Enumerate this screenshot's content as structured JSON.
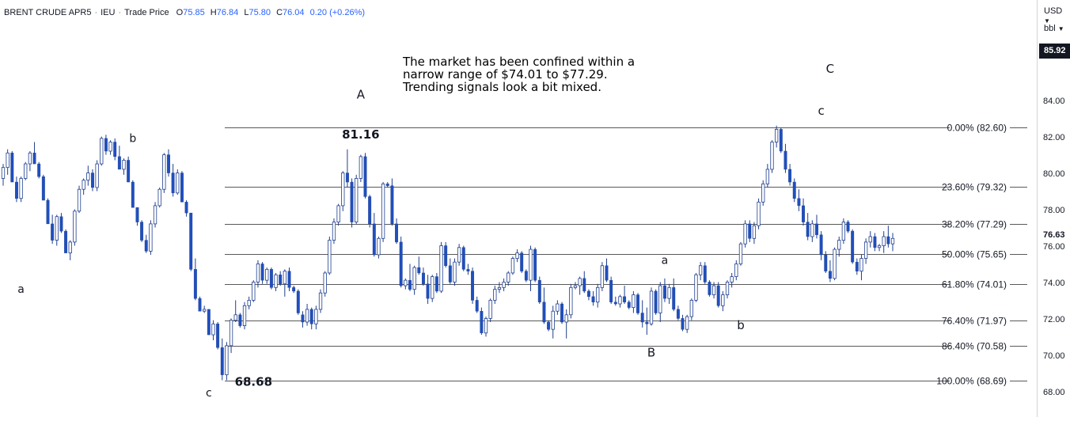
{
  "legend": {
    "symbol": "BRENT CRUDE APR5",
    "exchange": "IEU",
    "series_label": "Trade Price",
    "o_key": "O",
    "o_val": "75.85",
    "h_key": "H",
    "h_val": "76.84",
    "l_key": "L",
    "l_val": "75.80",
    "c_key": "C",
    "c_val": "76.04",
    "change": "0.20 (+0.26%)"
  },
  "price_axis": {
    "currency": "USD",
    "unit": "bbl",
    "top_tag": "85.92",
    "last_price": "76.63",
    "ticks": [
      "84.00",
      "82.00",
      "80.00",
      "78.00",
      "76.00",
      "74.00",
      "72.00",
      "70.00",
      "68.00"
    ]
  },
  "note": {
    "lines": [
      "The market has been confined within a",
      "narrow range of $74.01 to $77.29.",
      "Trending signals look a bit mixed."
    ]
  },
  "chart_data": {
    "type": "candlestick",
    "title": "BRENT CRUDE APR5",
    "ylabel": "USD / bbl",
    "ylim": [
      67.2,
      87.0
    ],
    "y_ticks": [
      68,
      70,
      72,
      74,
      76,
      78,
      80,
      82,
      84
    ],
    "last_price": 76.63,
    "colors": {
      "up": "#ffffff",
      "down": "#1f4fbf",
      "wick": "#1f3f8f",
      "fib": "#222222"
    },
    "fibonacci": [
      {
        "label": "0.00% (82.60)",
        "level": 82.6
      },
      {
        "label": "23.60% (79.32)",
        "level": 79.32
      },
      {
        "label": "38.20% (77.29)",
        "level": 77.29
      },
      {
        "label": "50.00% (75.65)",
        "level": 75.65
      },
      {
        "label": "61.80% (74.01)",
        "level": 74.01
      },
      {
        "label": "76.40% (71.97)",
        "level": 71.97
      },
      {
        "label": "86.40% (70.58)",
        "level": 70.58
      },
      {
        "label": "100.00% (68.69)",
        "level": 68.69
      }
    ],
    "wave_labels": [
      {
        "text": "a",
        "i": 4,
        "price": 73.5,
        "big": false
      },
      {
        "text": "b",
        "i": 29,
        "price": 81.8,
        "big": false
      },
      {
        "text": "c",
        "i": 46,
        "price": 67.8,
        "big": false
      },
      {
        "text": "A",
        "i": 80,
        "price": 84.2,
        "big": true
      },
      {
        "text": "a",
        "i": 148,
        "price": 75.1,
        "big": false
      },
      {
        "text": "B",
        "i": 145,
        "price": 70.0,
        "big": true
      },
      {
        "text": "b",
        "i": 165,
        "price": 71.5,
        "big": true
      },
      {
        "text": "C",
        "i": 185,
        "price": 85.6,
        "big": true
      },
      {
        "text": "c",
        "i": 183,
        "price": 83.3,
        "big": true
      }
    ],
    "price_labels": [
      {
        "text": "81.16",
        "i": 80,
        "price": 82.0
      },
      {
        "text": "68.68",
        "i": 56,
        "price": 68.4
      }
    ],
    "ohlc": [
      [
        79.8,
        80.6,
        79.4,
        80.4
      ],
      [
        80.4,
        81.4,
        80.0,
        81.2
      ],
      [
        81.2,
        81.3,
        79.6,
        79.6
      ],
      [
        79.6,
        79.9,
        78.5,
        78.7
      ],
      [
        78.7,
        79.9,
        78.5,
        79.8
      ],
      [
        79.8,
        80.7,
        79.7,
        80.6
      ],
      [
        80.6,
        81.3,
        80.2,
        81.2
      ],
      [
        81.2,
        81.8,
        80.6,
        80.6
      ],
      [
        80.6,
        80.7,
        79.8,
        79.9
      ],
      [
        79.9,
        80.0,
        78.6,
        78.6
      ],
      [
        78.6,
        78.7,
        77.3,
        77.3
      ],
      [
        77.3,
        77.8,
        76.2,
        76.4
      ],
      [
        76.4,
        77.8,
        76.1,
        77.7
      ],
      [
        77.7,
        77.9,
        76.8,
        76.9
      ],
      [
        76.9,
        77.0,
        75.7,
        75.7
      ],
      [
        75.7,
        76.4,
        75.3,
        76.3
      ],
      [
        76.3,
        78.1,
        76.1,
        78.0
      ],
      [
        78.0,
        79.4,
        77.9,
        79.2
      ],
      [
        79.2,
        79.8,
        78.9,
        79.7
      ],
      [
        79.7,
        80.5,
        79.4,
        80.1
      ],
      [
        80.1,
        80.3,
        79.1,
        79.3
      ],
      [
        79.3,
        80.8,
        79.1,
        80.6
      ],
      [
        80.6,
        82.1,
        80.5,
        82.0
      ],
      [
        82.0,
        82.2,
        81.1,
        81.3
      ],
      [
        81.3,
        81.9,
        81.1,
        81.8
      ],
      [
        81.8,
        82.0,
        80.8,
        81.0
      ],
      [
        81.0,
        81.6,
        80.3,
        80.3
      ],
      [
        80.3,
        80.9,
        80.0,
        80.8
      ],
      [
        80.8,
        81.0,
        79.6,
        79.6
      ],
      [
        79.6,
        79.7,
        78.2,
        78.2
      ],
      [
        78.2,
        78.2,
        77.2,
        77.4
      ],
      [
        77.4,
        77.5,
        76.3,
        76.4
      ],
      [
        76.4,
        76.7,
        75.7,
        75.8
      ],
      [
        75.8,
        77.5,
        75.6,
        77.3
      ],
      [
        77.3,
        78.5,
        77.1,
        78.3
      ],
      [
        78.3,
        79.3,
        78.2,
        79.2
      ],
      [
        79.2,
        81.2,
        79.0,
        81.1
      ],
      [
        81.1,
        81.4,
        79.9,
        80.1
      ],
      [
        80.1,
        80.6,
        78.8,
        79.0
      ],
      [
        79.0,
        80.3,
        78.9,
        80.1
      ],
      [
        80.1,
        80.2,
        78.5,
        78.5
      ],
      [
        78.5,
        78.6,
        77.7,
        77.9
      ],
      [
        77.9,
        77.9,
        74.7,
        74.8
      ],
      [
        74.8,
        75.4,
        73.1,
        73.2
      ],
      [
        73.2,
        73.3,
        72.5,
        72.5
      ],
      [
        72.5,
        72.8,
        72.4,
        72.6
      ],
      [
        72.6,
        72.6,
        71.2,
        71.2
      ],
      [
        71.2,
        72.0,
        70.9,
        71.8
      ],
      [
        71.8,
        71.9,
        70.4,
        70.5
      ],
      [
        70.5,
        71.0,
        68.7,
        69.0
      ],
      [
        69.0,
        70.8,
        68.7,
        70.6
      ],
      [
        70.6,
        72.1,
        70.2,
        72.0
      ],
      [
        72.0,
        73.1,
        71.9,
        72.3
      ],
      [
        72.3,
        72.4,
        71.6,
        71.7
      ],
      [
        71.7,
        73.0,
        71.5,
        72.8
      ],
      [
        72.8,
        73.3,
        72.6,
        73.1
      ],
      [
        73.1,
        74.2,
        73.0,
        74.1
      ],
      [
        74.1,
        75.3,
        73.8,
        75.1
      ],
      [
        75.1,
        75.2,
        74.0,
        74.2
      ],
      [
        74.2,
        74.9,
        74.0,
        74.8
      ],
      [
        74.8,
        74.9,
        73.7,
        73.8
      ],
      [
        73.8,
        74.6,
        73.6,
        74.5
      ],
      [
        74.5,
        74.7,
        73.9,
        74.0
      ],
      [
        74.0,
        74.8,
        73.3,
        74.7
      ],
      [
        74.7,
        74.9,
        73.6,
        73.8
      ],
      [
        73.8,
        73.9,
        73.5,
        73.6
      ],
      [
        73.6,
        73.7,
        72.3,
        72.4
      ],
      [
        72.3,
        72.5,
        71.6,
        71.9
      ],
      [
        71.9,
        72.9,
        71.7,
        72.6
      ],
      [
        72.6,
        72.7,
        71.5,
        71.8
      ],
      [
        71.8,
        72.8,
        71.5,
        72.6
      ],
      [
        72.6,
        73.7,
        72.4,
        73.5
      ],
      [
        73.5,
        74.7,
        73.3,
        74.6
      ],
      [
        74.6,
        76.6,
        74.5,
        76.4
      ],
      [
        76.4,
        77.6,
        76.2,
        77.4
      ],
      [
        77.4,
        78.4,
        77.2,
        78.3
      ],
      [
        78.3,
        80.2,
        78.0,
        80.1
      ],
      [
        80.1,
        81.4,
        79.3,
        79.6
      ],
      [
        79.6,
        79.8,
        77.1,
        77.4
      ],
      [
        77.4,
        80.0,
        77.3,
        79.8
      ],
      [
        79.8,
        81.1,
        79.6,
        81.0
      ],
      [
        81.0,
        81.2,
        78.7,
        78.8
      ],
      [
        78.8,
        78.9,
        77.1,
        77.3
      ],
      [
        77.3,
        77.9,
        75.5,
        75.6
      ],
      [
        75.6,
        76.6,
        75.4,
        76.5
      ],
      [
        76.5,
        79.6,
        76.3,
        79.5
      ],
      [
        79.5,
        79.6,
        79.3,
        79.4
      ],
      [
        79.4,
        79.8,
        77.2,
        77.3
      ],
      [
        77.3,
        77.6,
        76.2,
        76.3
      ],
      [
        76.3,
        76.6,
        73.8,
        73.9
      ],
      [
        73.9,
        74.3,
        73.7,
        74.2
      ],
      [
        74.2,
        75.1,
        73.6,
        73.7
      ],
      [
        73.7,
        75.0,
        73.4,
        74.9
      ],
      [
        74.9,
        75.5,
        74.5,
        74.6
      ],
      [
        74.6,
        74.9,
        73.9,
        74.0
      ],
      [
        74.0,
        74.5,
        72.9,
        73.2
      ],
      [
        73.2,
        74.5,
        73.0,
        74.4
      ],
      [
        74.4,
        74.6,
        73.5,
        73.6
      ],
      [
        73.6,
        76.3,
        73.5,
        76.1
      ],
      [
        76.1,
        76.3,
        74.9,
        75.0
      ],
      [
        75.0,
        75.4,
        74.0,
        74.1
      ],
      [
        74.1,
        75.4,
        73.9,
        75.2
      ],
      [
        75.2,
        76.2,
        75.0,
        76.0
      ],
      [
        76.0,
        76.1,
        74.7,
        74.8
      ],
      [
        74.8,
        75.1,
        74.5,
        74.7
      ],
      [
        74.7,
        74.9,
        72.9,
        73.1
      ],
      [
        73.1,
        73.3,
        72.4,
        72.5
      ],
      [
        72.5,
        72.7,
        71.2,
        71.3
      ],
      [
        71.3,
        72.2,
        71.1,
        72.1
      ],
      [
        72.1,
        73.2,
        71.9,
        73.1
      ],
      [
        73.1,
        73.9,
        72.9,
        73.7
      ],
      [
        73.7,
        74.1,
        73.5,
        73.8
      ],
      [
        73.8,
        74.3,
        73.6,
        74.1
      ],
      [
        74.1,
        74.7,
        73.9,
        74.6
      ],
      [
        74.6,
        75.5,
        74.5,
        75.4
      ],
      [
        75.4,
        75.9,
        75.2,
        75.7
      ],
      [
        75.7,
        75.8,
        74.6,
        74.7
      ],
      [
        74.7,
        74.8,
        74.1,
        74.2
      ],
      [
        74.2,
        76.1,
        73.6,
        75.9
      ],
      [
        75.9,
        76.0,
        74.1,
        74.2
      ],
      [
        74.2,
        74.4,
        72.9,
        73.0
      ],
      [
        73.0,
        73.8,
        71.8,
        71.9
      ],
      [
        71.9,
        72.0,
        71.4,
        71.5
      ],
      [
        71.5,
        72.8,
        71.0,
        72.5
      ],
      [
        72.5,
        73.1,
        72.3,
        72.9
      ],
      [
        72.9,
        73.0,
        71.8,
        71.9
      ],
      [
        71.9,
        72.6,
        71.0,
        72.3
      ],
      [
        72.3,
        74.0,
        72.1,
        73.8
      ],
      [
        73.8,
        74.1,
        73.7,
        73.9
      ],
      [
        73.9,
        74.4,
        73.4,
        74.3
      ],
      [
        74.3,
        74.7,
        73.5,
        73.6
      ],
      [
        73.6,
        73.7,
        73.1,
        73.3
      ],
      [
        73.3,
        73.6,
        72.8,
        73.0
      ],
      [
        73.0,
        74.0,
        72.7,
        73.8
      ],
      [
        73.8,
        75.2,
        73.6,
        75.0
      ],
      [
        75.0,
        75.4,
        74.1,
        74.2
      ],
      [
        74.2,
        74.4,
        72.9,
        73.0
      ],
      [
        73.0,
        73.3,
        72.8,
        72.9
      ],
      [
        72.9,
        73.4,
        72.7,
        73.3
      ],
      [
        73.3,
        73.9,
        72.9,
        73.0
      ],
      [
        73.0,
        73.1,
        72.6,
        72.7
      ],
      [
        72.7,
        73.6,
        72.4,
        73.4
      ],
      [
        73.4,
        73.5,
        72.3,
        72.4
      ],
      [
        72.4,
        73.1,
        71.6,
        71.9
      ],
      [
        71.9,
        72.7,
        71.2,
        71.8
      ],
      [
        71.8,
        73.8,
        71.7,
        73.6
      ],
      [
        73.6,
        73.7,
        72.3,
        72.4
      ],
      [
        72.4,
        74.1,
        71.9,
        73.9
      ],
      [
        73.9,
        74.3,
        73.0,
        73.2
      ],
      [
        73.2,
        74.0,
        72.9,
        73.8
      ],
      [
        73.8,
        74.3,
        72.5,
        72.6
      ],
      [
        72.6,
        72.8,
        72.0,
        72.1
      ],
      [
        72.1,
        72.3,
        71.4,
        71.5
      ],
      [
        71.5,
        72.3,
        71.3,
        72.2
      ],
      [
        72.2,
        73.2,
        72.0,
        73.1
      ],
      [
        73.1,
        74.6,
        73.0,
        74.5
      ],
      [
        74.5,
        75.2,
        74.2,
        75.0
      ],
      [
        75.0,
        75.2,
        74.0,
        74.1
      ],
      [
        74.1,
        74.2,
        73.3,
        73.4
      ],
      [
        73.4,
        74.1,
        73.2,
        73.9
      ],
      [
        73.9,
        74.1,
        72.7,
        72.8
      ],
      [
        72.8,
        73.6,
        72.5,
        73.4
      ],
      [
        73.4,
        74.2,
        73.2,
        74.1
      ],
      [
        74.1,
        74.6,
        73.8,
        74.4
      ],
      [
        74.4,
        75.3,
        74.2,
        75.1
      ],
      [
        75.1,
        76.3,
        75.0,
        76.2
      ],
      [
        76.2,
        77.5,
        76.0,
        77.3
      ],
      [
        77.3,
        77.5,
        76.3,
        76.5
      ],
      [
        76.5,
        77.4,
        76.2,
        77.2
      ],
      [
        77.2,
        78.7,
        77.0,
        78.5
      ],
      [
        78.5,
        79.7,
        78.3,
        79.5
      ],
      [
        79.5,
        80.6,
        79.3,
        80.3
      ],
      [
        80.3,
        81.9,
        80.1,
        81.8
      ],
      [
        81.8,
        82.7,
        81.5,
        82.5
      ],
      [
        82.5,
        82.6,
        81.2,
        81.3
      ],
      [
        81.3,
        81.7,
        80.1,
        80.3
      ],
      [
        80.3,
        80.6,
        79.4,
        79.6
      ],
      [
        79.6,
        79.8,
        78.5,
        78.7
      ],
      [
        78.7,
        79.2,
        78.0,
        78.3
      ],
      [
        78.3,
        78.7,
        77.2,
        77.4
      ],
      [
        77.4,
        77.9,
        76.4,
        76.6
      ],
      [
        76.6,
        77.5,
        76.3,
        77.3
      ],
      [
        77.3,
        77.8,
        76.5,
        76.7
      ],
      [
        76.7,
        76.9,
        75.3,
        75.6
      ],
      [
        75.6,
        75.8,
        74.6,
        74.7
      ],
      [
        74.7,
        75.3,
        74.1,
        74.3
      ],
      [
        74.3,
        76.0,
        74.2,
        75.9
      ],
      [
        75.9,
        76.6,
        75.5,
        76.4
      ],
      [
        76.4,
        77.6,
        76.2,
        77.4
      ],
      [
        77.4,
        77.5,
        76.8,
        76.9
      ],
      [
        76.9,
        77.0,
        75.1,
        75.2
      ],
      [
        75.2,
        75.4,
        74.5,
        74.7
      ],
      [
        74.7,
        75.6,
        74.2,
        75.4
      ],
      [
        75.4,
        76.5,
        75.1,
        76.3
      ],
      [
        76.3,
        76.9,
        76.0,
        76.6
      ],
      [
        76.6,
        76.8,
        75.8,
        76.0
      ],
      [
        76.0,
        76.2,
        75.8,
        76.1
      ],
      [
        76.1,
        76.9,
        75.7,
        76.6
      ],
      [
        76.6,
        77.2,
        76.0,
        76.2
      ],
      [
        76.2,
        76.8,
        75.8,
        76.5
      ]
    ]
  }
}
